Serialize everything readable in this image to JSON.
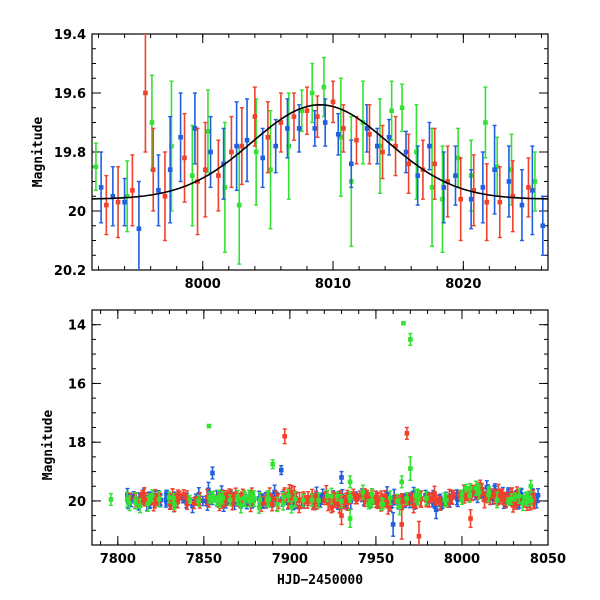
{
  "colors": {
    "green": "#33e233",
    "blue": "#1f5fe0",
    "red": "#f0412a",
    "model": "#000000"
  },
  "chart_data": [
    {
      "type": "scatter",
      "panel": "top",
      "title": "",
      "xlabel": "",
      "ylabel": "Magnitude",
      "xlim": [
        7991.5,
        8026.5
      ],
      "ylim": [
        19.4,
        20.2
      ],
      "y_inverted": true,
      "x_ticks": [
        8000,
        8010,
        8020
      ],
      "y_ticks": [
        19.4,
        19.6,
        19.8,
        20,
        20.2
      ],
      "y_tick_labels": [
        "19.4",
        "19.6",
        "19.8",
        "20",
        "20.2"
      ],
      "grid": false,
      "legend": "none",
      "model_curve": {
        "description": "microlensing-like Gaussian bump",
        "baseline": 19.96,
        "peak_mag": 19.64,
        "peak_x": 8009,
        "sigma": 5.2
      },
      "series": [
        {
          "color": "green",
          "points": [
            [
              7991.8,
              19.85,
              0.08
            ],
            [
              7994.2,
              19.95,
              0.12
            ],
            [
              7996.1,
              19.7,
              0.16
            ],
            [
              7997.6,
              19.78,
              0.22
            ],
            [
              7999.2,
              19.88,
              0.17
            ],
            [
              8000.4,
              19.73,
              0.14
            ],
            [
              8001.7,
              19.92,
              0.22
            ],
            [
              8002.8,
              19.98,
              0.2
            ],
            [
              8004.1,
              19.8,
              0.18
            ],
            [
              8005.2,
              19.86,
              0.2
            ],
            [
              8006.6,
              19.78,
              0.18
            ],
            [
              8007.6,
              19.66,
              0.07
            ],
            [
              8008.4,
              19.6,
              0.1
            ],
            [
              8009.3,
              19.58,
              0.1
            ],
            [
              8010.6,
              19.75,
              0.2
            ],
            [
              8011.4,
              19.9,
              0.22
            ],
            [
              8012.3,
              19.7,
              0.14
            ],
            [
              8013.6,
              19.78,
              0.16
            ],
            [
              8014.5,
              19.66,
              0.1
            ],
            [
              8015.3,
              19.65,
              0.08
            ],
            [
              8016.4,
              19.8,
              0.16
            ],
            [
              8017.6,
              19.92,
              0.2
            ],
            [
              8018.4,
              19.96,
              0.18
            ],
            [
              8019.6,
              19.82,
              0.1
            ],
            [
              8020.6,
              19.88,
              0.12
            ],
            [
              8021.7,
              19.7,
              0.12
            ],
            [
              8022.6,
              19.85,
              0.1
            ],
            [
              8023.7,
              19.86,
              0.12
            ],
            [
              8025.5,
              19.9,
              0.1
            ]
          ]
        },
        {
          "color": "blue",
          "points": [
            [
              7992.2,
              19.92,
              0.12
            ],
            [
              7993.1,
              19.95,
              0.1
            ],
            [
              7994.0,
              19.97,
              0.08
            ],
            [
              7995.1,
              20.06,
              0.16
            ],
            [
              7996.6,
              19.93,
              0.12
            ],
            [
              7997.5,
              19.86,
              0.18
            ],
            [
              7998.3,
              19.75,
              0.15
            ],
            [
              7999.4,
              19.72,
              0.12
            ],
            [
              8000.6,
              19.8,
              0.12
            ],
            [
              8001.6,
              19.84,
              0.12
            ],
            [
              8002.6,
              19.78,
              0.15
            ],
            [
              8003.4,
              19.76,
              0.14
            ],
            [
              8004.6,
              19.82,
              0.1
            ],
            [
              8005.6,
              19.78,
              0.09
            ],
            [
              8006.5,
              19.72,
              0.1
            ],
            [
              8007.4,
              19.72,
              0.08
            ],
            [
              8008.6,
              19.72,
              0.06
            ],
            [
              8009.4,
              19.7,
              0.08
            ],
            [
              8010.4,
              19.74,
              0.07
            ],
            [
              8011.4,
              19.84,
              0.08
            ],
            [
              8012.6,
              19.72,
              0.08
            ],
            [
              8013.4,
              19.78,
              0.06
            ],
            [
              8014.3,
              19.75,
              0.06
            ],
            [
              8015.6,
              19.8,
              0.07
            ],
            [
              8016.5,
              19.88,
              0.1
            ],
            [
              8017.4,
              19.78,
              0.08
            ],
            [
              8018.5,
              19.92,
              0.12
            ],
            [
              8019.4,
              19.88,
              0.1
            ],
            [
              8020.6,
              19.96,
              0.1
            ],
            [
              8021.5,
              19.92,
              0.12
            ],
            [
              8022.4,
              19.86,
              0.15
            ],
            [
              8023.5,
              19.9,
              0.12
            ],
            [
              8024.5,
              19.98,
              0.12
            ],
            [
              8025.3,
              19.93,
              0.15
            ],
            [
              8026.1,
              20.05,
              0.1
            ]
          ]
        },
        {
          "color": "red",
          "points": [
            [
              7992.6,
              19.98,
              0.1
            ],
            [
              7993.5,
              19.97,
              0.12
            ],
            [
              7994.6,
              19.93,
              0.12
            ],
            [
              7995.6,
              19.6,
              0.2
            ],
            [
              7996.2,
              19.86,
              0.14
            ],
            [
              7997.1,
              19.95,
              0.15
            ],
            [
              7998.6,
              19.82,
              0.15
            ],
            [
              7999.6,
              19.9,
              0.18
            ],
            [
              8000.2,
              19.86,
              0.16
            ],
            [
              8001.2,
              19.88,
              0.12
            ],
            [
              8002.2,
              19.8,
              0.12
            ],
            [
              8003.0,
              19.78,
              0.13
            ],
            [
              8004.0,
              19.68,
              0.1
            ],
            [
              8005.0,
              19.75,
              0.12
            ],
            [
              8006.0,
              19.7,
              0.1
            ],
            [
              8007.0,
              19.68,
              0.08
            ],
            [
              8008.0,
              19.66,
              0.08
            ],
            [
              8008.8,
              19.68,
              0.07
            ],
            [
              8010.0,
              19.63,
              0.07
            ],
            [
              8010.8,
              19.72,
              0.08
            ],
            [
              8011.8,
              19.76,
              0.08
            ],
            [
              8012.8,
              19.74,
              0.1
            ],
            [
              8013.8,
              19.8,
              0.09
            ],
            [
              8014.8,
              19.78,
              0.1
            ],
            [
              8015.8,
              19.84,
              0.1
            ],
            [
              8016.9,
              19.86,
              0.1
            ],
            [
              8017.8,
              19.84,
              0.12
            ],
            [
              8018.8,
              19.9,
              0.12
            ],
            [
              8019.8,
              19.96,
              0.14
            ],
            [
              8020.8,
              19.93,
              0.12
            ],
            [
              8021.8,
              19.97,
              0.13
            ],
            [
              8022.8,
              19.97,
              0.12
            ],
            [
              8023.8,
              19.95,
              0.12
            ],
            [
              8025.0,
              19.92,
              0.1
            ]
          ]
        }
      ]
    },
    {
      "type": "scatter",
      "panel": "bottom",
      "title": "",
      "xlabel": "HJD−2450000",
      "ylabel": "Magnitude",
      "xlim": [
        7785,
        8050
      ],
      "ylim": [
        13.5,
        21.5
      ],
      "y_inverted": true,
      "x_ticks": [
        7800,
        7850,
        7900,
        7950,
        8000,
        8050
      ],
      "y_ticks": [
        14,
        16,
        18,
        20
      ],
      "grid": false,
      "legend": "none",
      "baseline_mag": 19.96,
      "observing_window": [
        7805,
        8045
      ],
      "series": [
        {
          "color": "blue",
          "n_dense_points": 180,
          "scatter_sigma": 0.1,
          "outliers": [
            [
              7855,
              19.05,
              0.2
            ],
            [
              7895,
              18.95,
              0.15
            ],
            [
              7930,
              19.2,
              0.2
            ],
            [
              7985,
              20.3,
              0.3
            ],
            [
              7960,
              20.8,
              0.4
            ]
          ]
        },
        {
          "color": "red",
          "n_dense_points": 220,
          "scatter_sigma": 0.1,
          "outliers": [
            [
              7897,
              17.8,
              0.25
            ],
            [
              7968,
              17.7,
              0.2
            ],
            [
              7965,
              20.8,
              0.5
            ],
            [
              7975,
              21.2,
              0.5
            ],
            [
              8005,
              20.6,
              0.3
            ],
            [
              7930,
              20.5,
              0.3
            ]
          ]
        },
        {
          "color": "green",
          "n_dense_points": 90,
          "scatter_sigma": 0.1,
          "outliers": [
            [
              7853,
              17.45,
              0
            ],
            [
              7966,
              13.95,
              0
            ],
            [
              7970,
              14.5,
              0.2
            ],
            [
              7970,
              18.9,
              0.4
            ],
            [
              7890,
              18.75,
              0.15
            ],
            [
              7935,
              19.35,
              0.2
            ],
            [
              7965,
              19.35,
              0.2
            ],
            [
              8040,
              19.5,
              0.2
            ],
            [
              7935,
              20.6,
              0.3
            ]
          ]
        }
      ]
    }
  ]
}
